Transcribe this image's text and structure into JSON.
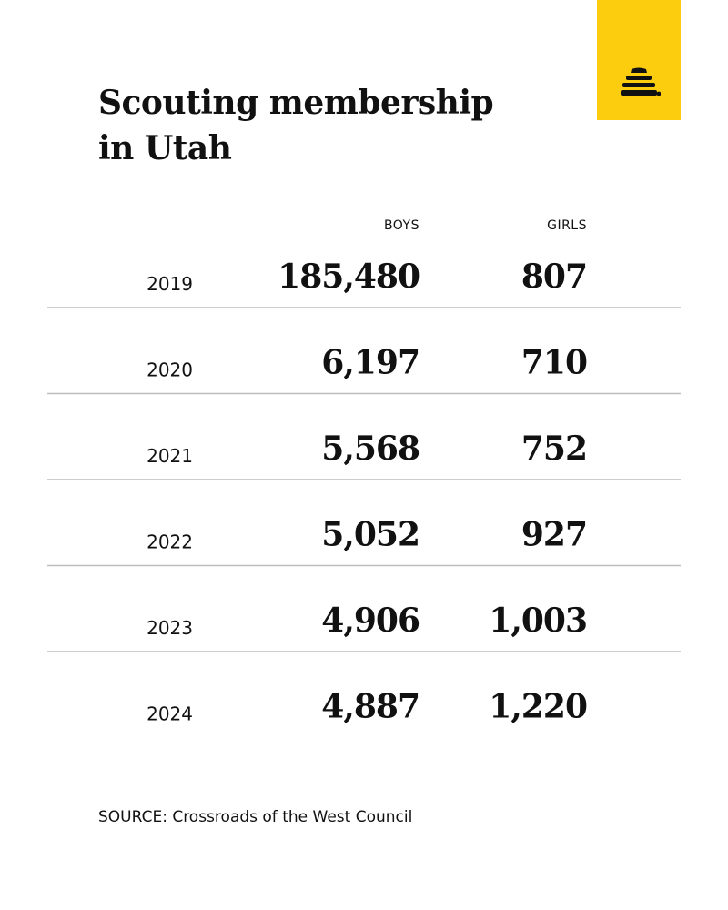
{
  "title_lines": [
    "Scouting membership",
    "in Utah"
  ],
  "columns": {
    "boys": "BOYS",
    "girls": "GIRLS"
  },
  "source": "SOURCE: Crossroads of the West Council",
  "logo_icon": "beehive-icon",
  "colors": {
    "logo_bg": "#fccd0f",
    "text": "#111111",
    "rule": "#bdbdbd"
  },
  "chart_data": {
    "type": "table",
    "title": "Scouting membership in Utah",
    "columns": [
      "BOYS",
      "GIRLS"
    ],
    "rows": [
      {
        "year": "2019",
        "boys": "185,480",
        "girls": "807"
      },
      {
        "year": "2020",
        "boys": "6,197",
        "girls": "710"
      },
      {
        "year": "2021",
        "boys": "5,568",
        "girls": "752"
      },
      {
        "year": "2022",
        "boys": "5,052",
        "girls": "927"
      },
      {
        "year": "2023",
        "boys": "4,906",
        "girls": "1,003"
      },
      {
        "year": "2024",
        "boys": "4,887",
        "girls": "1,220"
      }
    ],
    "series": [
      {
        "name": "BOYS",
        "values": [
          185480,
          6197,
          5568,
          5052,
          4906,
          4887
        ]
      },
      {
        "name": "GIRLS",
        "values": [
          807,
          710,
          752,
          927,
          1003,
          1220
        ]
      }
    ]
  }
}
